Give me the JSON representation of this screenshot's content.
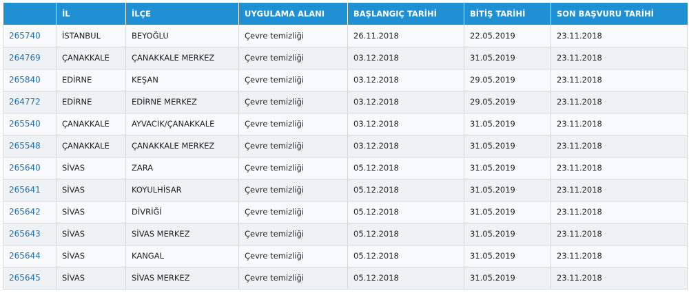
{
  "table": {
    "headers": [
      "",
      "İL",
      "İLÇE",
      "UYGULAMA ALANI",
      "BAŞLANGIÇ TARİHİ",
      "BİTİŞ TARİHİ",
      "SON BAŞVURU TARİHİ"
    ],
    "rows": [
      {
        "id": "265740",
        "il": "İSTANBUL",
        "ilce": "BEYOĞLU",
        "alan": "Çevre temizliği",
        "baslangic": "26.11.2018",
        "bitis": "22.05.2019",
        "son_basvuru": "23.11.2018"
      },
      {
        "id": "264769",
        "il": "ÇANAKKALE",
        "ilce": "ÇANAKKALE MERKEZ",
        "alan": "Çevre temizliği",
        "baslangic": "03.12.2018",
        "bitis": "31.05.2019",
        "son_basvuru": "23.11.2018"
      },
      {
        "id": "265840",
        "il": "EDİRNE",
        "ilce": "KEŞAN",
        "alan": "Çevre temizliği",
        "baslangic": "03.12.2018",
        "bitis": "29.05.2019",
        "son_basvuru": "23.11.2018"
      },
      {
        "id": "264772",
        "il": "EDİRNE",
        "ilce": "EDİRNE MERKEZ",
        "alan": "Çevre temizliği",
        "baslangic": "03.12.2018",
        "bitis": "29.05.2019",
        "son_basvuru": "23.11.2018"
      },
      {
        "id": "265540",
        "il": "ÇANAKKALE",
        "ilce": "AYVACIK/ÇANAKKALE",
        "alan": "Çevre temizliği",
        "baslangic": "03.12.2018",
        "bitis": "31.05.2019",
        "son_basvuru": "23.11.2018"
      },
      {
        "id": "265548",
        "il": "ÇANAKKALE",
        "ilce": "ÇANAKKALE MERKEZ",
        "alan": "Çevre temizliği",
        "baslangic": "03.12.2018",
        "bitis": "31.05.2019",
        "son_basvuru": "23.11.2018"
      },
      {
        "id": "265640",
        "il": "SİVAS",
        "ilce": "ZARA",
        "alan": "Çevre temizliği",
        "baslangic": "05.12.2018",
        "bitis": "31.05.2019",
        "son_basvuru": "23.11.2018"
      },
      {
        "id": "265641",
        "il": "SİVAS",
        "ilce": "KOYULHİSAR",
        "alan": "Çevre temizliği",
        "baslangic": "05.12.2018",
        "bitis": "31.05.2019",
        "son_basvuru": "23.11.2018"
      },
      {
        "id": "265642",
        "il": "SİVAS",
        "ilce": "DİVRİĞİ",
        "alan": "Çevre temizliği",
        "baslangic": "05.12.2018",
        "bitis": "31.05.2019",
        "son_basvuru": "23.11.2018"
      },
      {
        "id": "265643",
        "il": "SİVAS",
        "ilce": "SİVAS MERKEZ",
        "alan": "Çevre temizliği",
        "baslangic": "05.12.2018",
        "bitis": "31.05.2019",
        "son_basvuru": "23.11.2018"
      },
      {
        "id": "265644",
        "il": "SİVAS",
        "ilce": "KANGAL",
        "alan": "Çevre temizliği",
        "baslangic": "05.12.2018",
        "bitis": "31.05.2019",
        "son_basvuru": "23.11.2018"
      },
      {
        "id": "265645",
        "il": "SİVAS",
        "ilce": "SİVAS MERKEZ",
        "alan": "Çevre temizliği",
        "baslangic": "05.12.2018",
        "bitis": "31.05.2019",
        "son_basvuru": "23.11.2018"
      }
    ]
  },
  "colors": {
    "header_bg": "#1e90d3",
    "link": "#1f6fb4"
  }
}
